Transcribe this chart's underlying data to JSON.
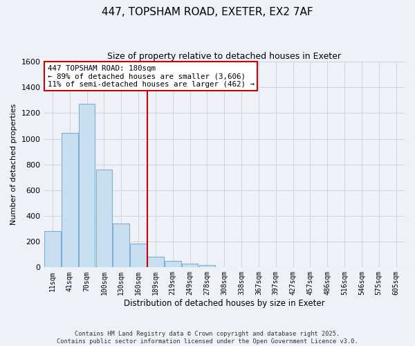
{
  "title": "447, TOPSHAM ROAD, EXETER, EX2 7AF",
  "subtitle": "Size of property relative to detached houses in Exeter",
  "xlabel": "Distribution of detached houses by size in Exeter",
  "ylabel": "Number of detached properties",
  "bar_labels": [
    "11sqm",
    "41sqm",
    "70sqm",
    "100sqm",
    "130sqm",
    "160sqm",
    "189sqm",
    "219sqm",
    "249sqm",
    "278sqm",
    "308sqm",
    "338sqm",
    "367sqm",
    "397sqm",
    "427sqm",
    "457sqm",
    "486sqm",
    "516sqm",
    "546sqm",
    "575sqm",
    "605sqm"
  ],
  "bar_values": [
    280,
    1045,
    1270,
    760,
    340,
    185,
    80,
    48,
    28,
    18,
    0,
    0,
    0,
    0,
    0,
    0,
    0,
    0,
    0,
    0,
    0
  ],
  "bar_color": "#c9dff0",
  "bar_edge_color": "#7bafd4",
  "vline_x": 6.0,
  "vline_color": "#cc0000",
  "annotation_title": "447 TOPSHAM ROAD: 180sqm",
  "annotation_line1": "← 89% of detached houses are smaller (3,606)",
  "annotation_line2": "11% of semi-detached houses are larger (462) →",
  "annotation_box_color": "#ffffff",
  "annotation_border_color": "#cc0000",
  "ylim": [
    0,
    1600
  ],
  "yticks": [
    0,
    200,
    400,
    600,
    800,
    1000,
    1200,
    1400,
    1600
  ],
  "footer1": "Contains HM Land Registry data © Crown copyright and database right 2025.",
  "footer2": "Contains public sector information licensed under the Open Government Licence v3.0.",
  "bg_color": "#eef2f8",
  "grid_color": "#c8d4e8"
}
